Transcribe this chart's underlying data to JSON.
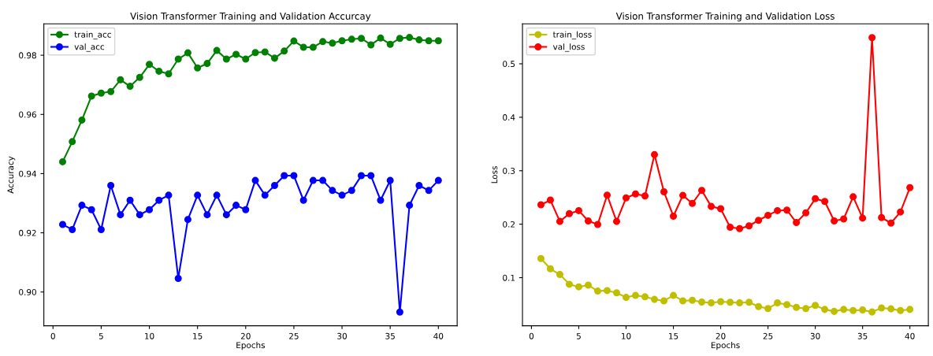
{
  "chart_data": [
    {
      "type": "line",
      "title": "Vision Transformer Training and Validation Accurcay",
      "xlabel": "Epochs",
      "ylabel": "Accuracy",
      "x": [
        1,
        2,
        3,
        4,
        5,
        6,
        7,
        8,
        9,
        10,
        11,
        12,
        13,
        14,
        15,
        16,
        17,
        18,
        19,
        20,
        21,
        22,
        23,
        24,
        25,
        26,
        27,
        28,
        29,
        30,
        31,
        32,
        33,
        34,
        35,
        36,
        37,
        38,
        39,
        40
      ],
      "series": [
        {
          "name": "train_acc",
          "color": "#008000",
          "values": [
            0.944,
            0.9508,
            0.9581,
            0.9662,
            0.9672,
            0.9677,
            0.9717,
            0.9695,
            0.9725,
            0.9769,
            0.9746,
            0.9737,
            0.9787,
            0.9808,
            0.9757,
            0.9772,
            0.9816,
            0.9787,
            0.9803,
            0.9787,
            0.9809,
            0.9811,
            0.979,
            0.9814,
            0.9848,
            0.9827,
            0.9827,
            0.9846,
            0.9841,
            0.9849,
            0.9854,
            0.9857,
            0.9835,
            0.9858,
            0.9837,
            0.9857,
            0.986,
            0.9852,
            0.9849,
            0.9849
          ]
        },
        {
          "name": "val_acc",
          "color": "#0000ff",
          "values": [
            0.9228,
            0.9211,
            0.9293,
            0.9278,
            0.9211,
            0.936,
            0.9261,
            0.931,
            0.9261,
            0.9278,
            0.931,
            0.9327,
            0.9046,
            0.9245,
            0.9327,
            0.9261,
            0.9327,
            0.9261,
            0.9293,
            0.9278,
            0.9377,
            0.9327,
            0.936,
            0.9393,
            0.9393,
            0.931,
            0.9377,
            0.9377,
            0.9343,
            0.9327,
            0.9343,
            0.9393,
            0.9393,
            0.931,
            0.9377,
            0.8932,
            0.9293,
            0.936,
            0.9343,
            0.9377
          ]
        }
      ],
      "xlim": [
        -0.95,
        41.95
      ],
      "xticks": [
        0,
        5,
        10,
        15,
        20,
        25,
        30,
        35,
        40
      ],
      "ylim": [
        0.8886,
        0.9906
      ],
      "yticks": [
        {
          "value": 0.9,
          "label": "0.90"
        },
        0.92,
        0.94,
        0.96,
        0.98
      ],
      "grid": false,
      "legend": "top left",
      "marker": "circle",
      "line_style": "solid"
    },
    {
      "type": "line",
      "title": "Vision Transformer Training and Validation Loss",
      "xlabel": "Epochs",
      "ylabel": "Loss",
      "x": [
        1,
        2,
        3,
        4,
        5,
        6,
        7,
        8,
        9,
        10,
        11,
        12,
        13,
        14,
        15,
        16,
        17,
        18,
        19,
        20,
        21,
        22,
        23,
        24,
        25,
        26,
        27,
        28,
        29,
        30,
        31,
        32,
        33,
        34,
        35,
        36,
        37,
        38,
        39,
        40
      ],
      "series": [
        {
          "name": "train_loss",
          "color": "#bfbf00",
          "values": [
            0.1358,
            0.1166,
            0.1059,
            0.0877,
            0.0829,
            0.0861,
            0.0749,
            0.0759,
            0.0717,
            0.0631,
            0.0668,
            0.0642,
            0.0594,
            0.0567,
            0.0668,
            0.0567,
            0.0578,
            0.0545,
            0.0529,
            0.0551,
            0.054,
            0.0529,
            0.054,
            0.046,
            0.0422,
            0.0529,
            0.0497,
            0.0444,
            0.0422,
            0.0481,
            0.0406,
            0.0369,
            0.0406,
            0.0385,
            0.0396,
            0.0358,
            0.0433,
            0.0417,
            0.0385,
            0.0406
          ]
        },
        {
          "name": "val_loss",
          "color": "#ff0000",
          "values": [
            0.2363,
            0.2451,
            0.2052,
            0.2197,
            0.2254,
            0.2062,
            0.1995,
            0.2544,
            0.2052,
            0.2492,
            0.2565,
            0.2528,
            0.3301,
            0.2606,
            0.215,
            0.2539,
            0.2389,
            0.2632,
            0.2332,
            0.229,
            0.1943,
            0.1917,
            0.1969,
            0.2073,
            0.2166,
            0.2254,
            0.2264,
            0.2031,
            0.2212,
            0.2477,
            0.2425,
            0.2062,
            0.2098,
            0.2513,
            0.2114,
            0.549,
            0.2124,
            0.2021,
            0.2228,
            0.2684
          ]
        }
      ],
      "xlim": [
        -0.95,
        41.95
      ],
      "xticks": [
        0,
        5,
        10,
        15,
        20,
        25,
        30,
        35,
        40
      ],
      "ylim": [
        0.0101,
        0.5747
      ],
      "yticks": [
        0.1,
        0.2,
        0.3,
        0.4,
        0.5
      ],
      "grid": false,
      "legend": "top left",
      "marker": "circle",
      "line_style": "solid"
    }
  ]
}
